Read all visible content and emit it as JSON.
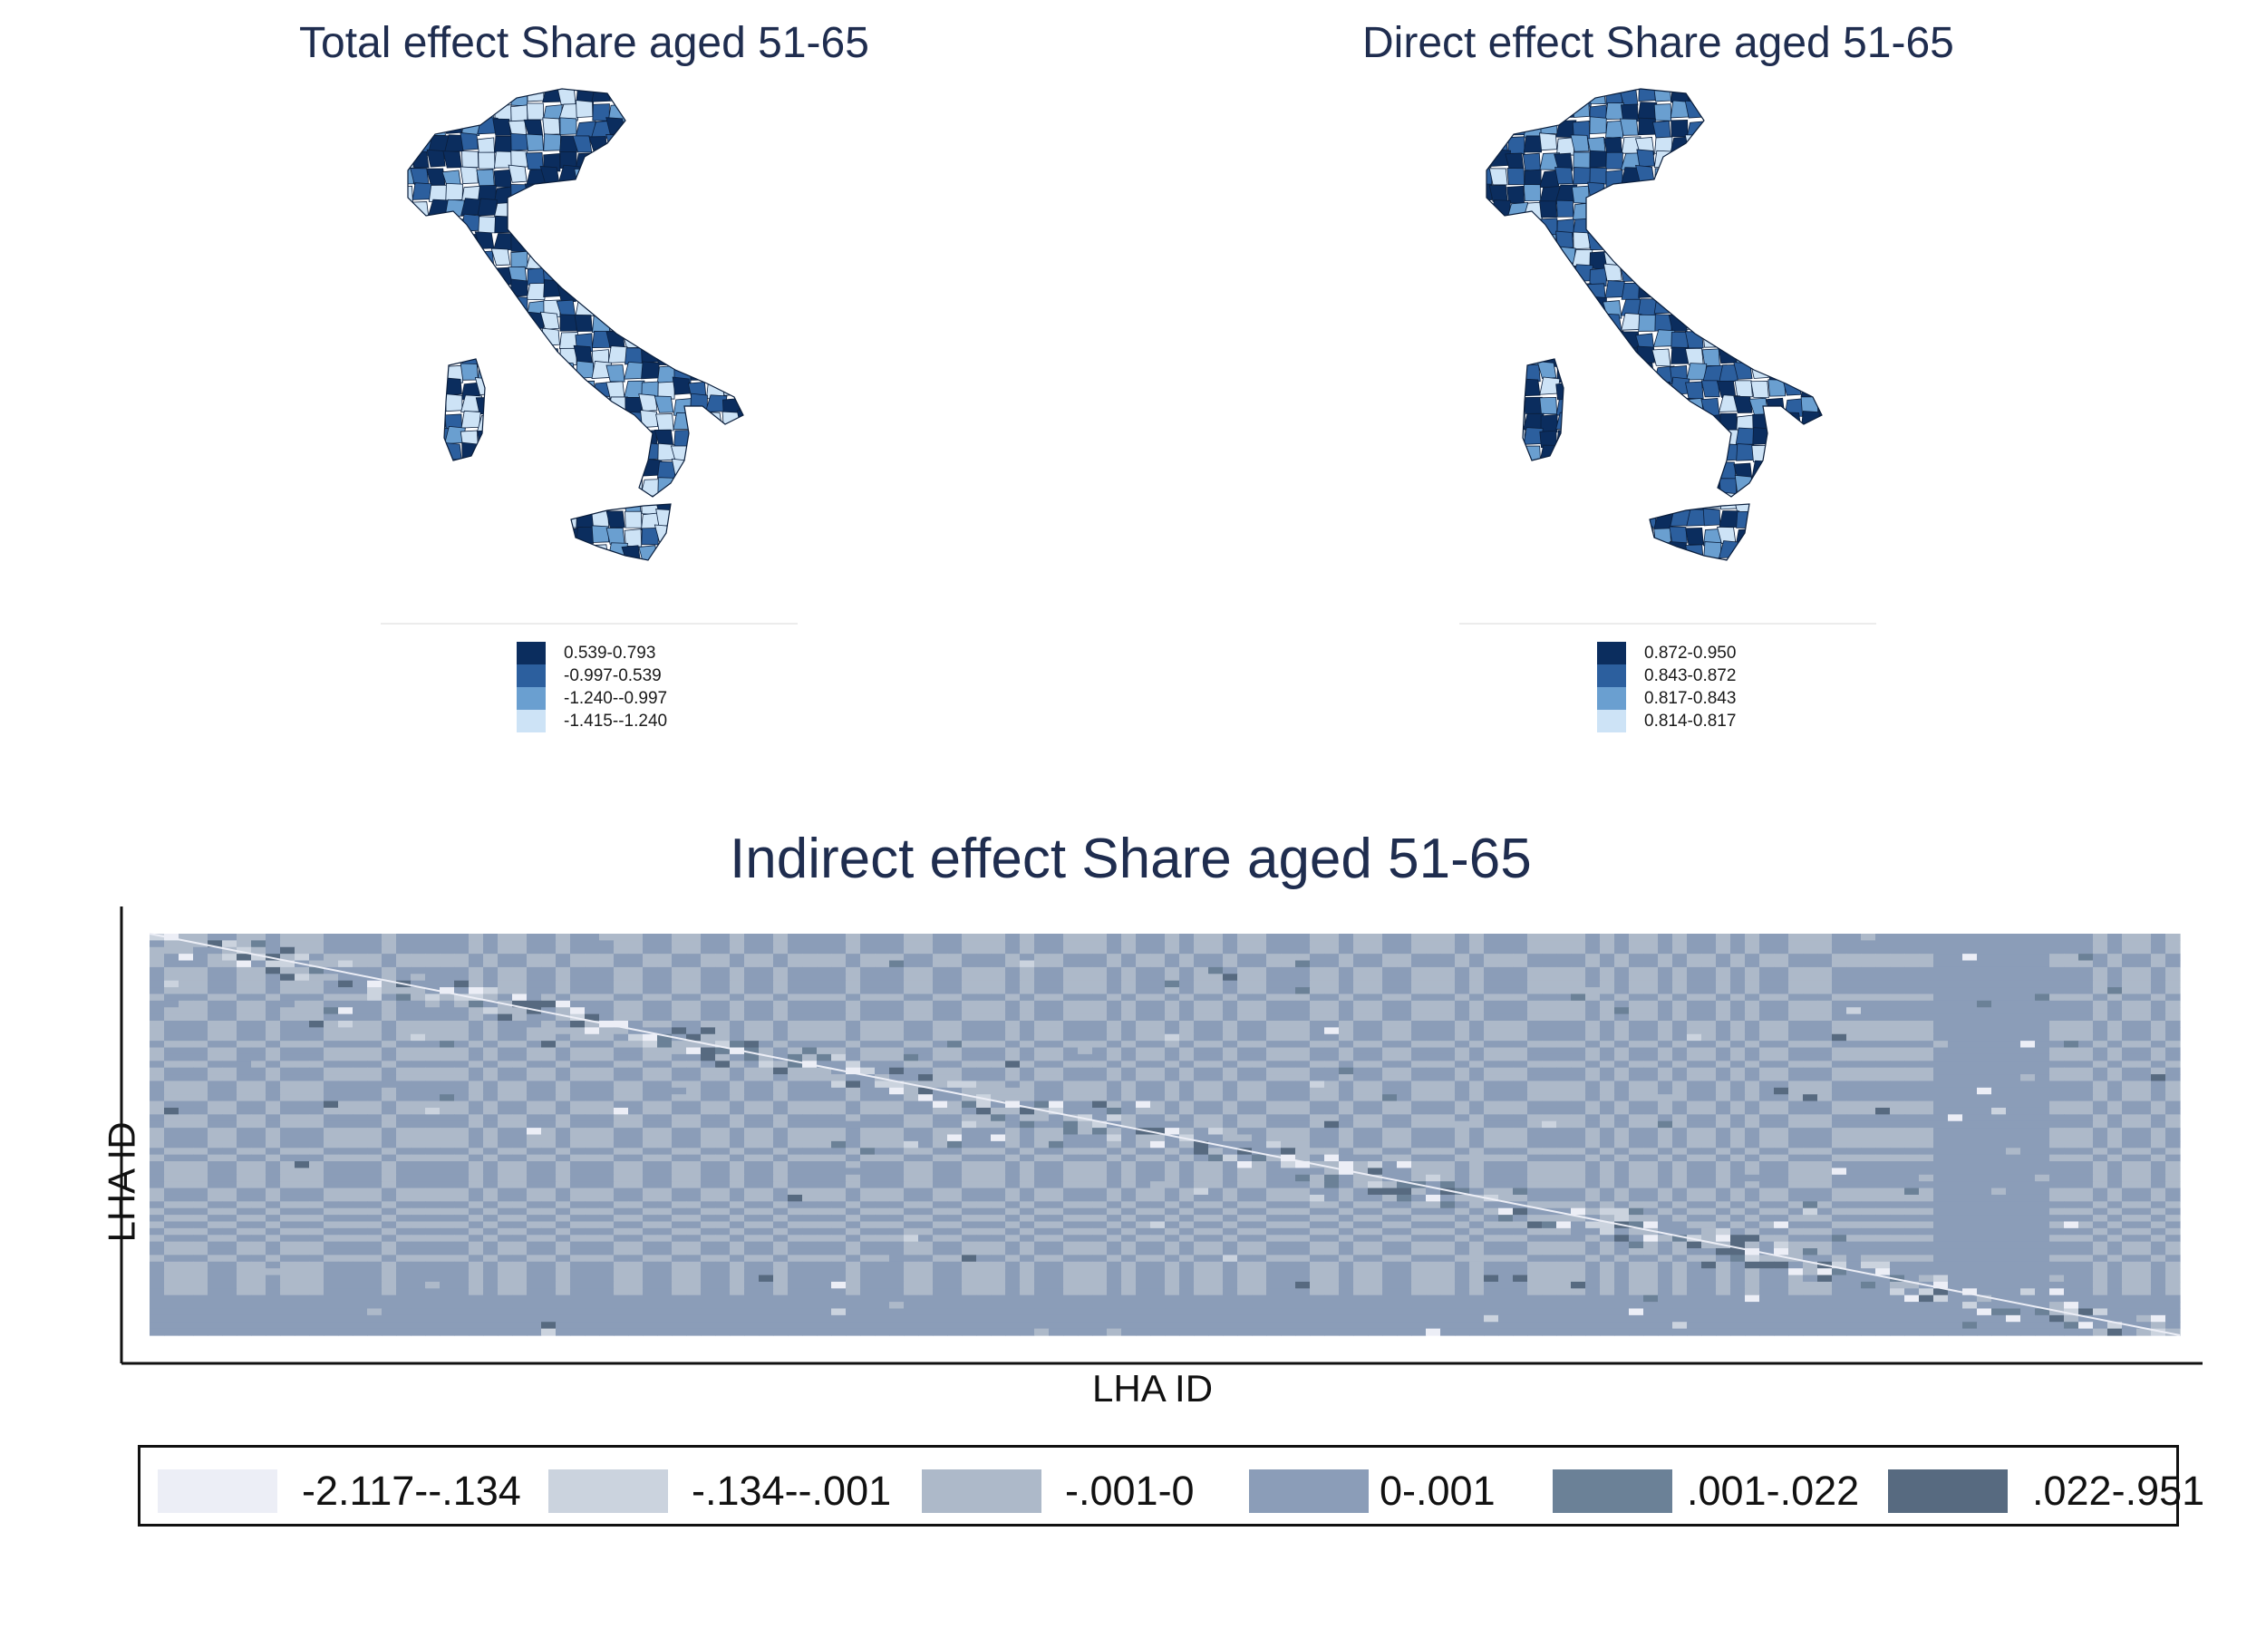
{
  "chart_data": [
    {
      "type": "map",
      "title": "Total effect Share aged 51-65",
      "legend": [
        {
          "label": "0.539-0.793",
          "color": "#0b2d5e"
        },
        {
          "label": "-0.997-0.539",
          "color": "#2c5f9e"
        },
        {
          "label": "-1.240--0.997",
          "color": "#6a9fd0"
        },
        {
          "label": "-1.415--1.240",
          "color": "#cde3f6"
        }
      ]
    },
    {
      "type": "map",
      "title": "Direct effect Share aged 51-65",
      "legend": [
        {
          "label": "0.872-0.950",
          "color": "#0b2d5e"
        },
        {
          "label": "0.843-0.872",
          "color": "#2c5f9e"
        },
        {
          "label": "0.817-0.843",
          "color": "#6a9fd0"
        },
        {
          "label": "0.814-0.817",
          "color": "#cde3f6"
        }
      ]
    },
    {
      "type": "heatmap",
      "title": "Indirect effect Share aged 51-65",
      "xlabel": "LHA ID",
      "ylabel": "LHA ID",
      "legend": [
        {
          "label": "-2.117--.134",
          "color": "#eceef6"
        },
        {
          "label": "-.134--.001",
          "color": "#cbd3de"
        },
        {
          "label": "-.001-0",
          "color": "#adb9c9"
        },
        {
          "label": "0-.001",
          "color": "#8b9db8"
        },
        {
          "label": ".001-.022",
          "color": "#6b8197"
        },
        {
          "label": ".022-.951",
          "color": "#576a80"
        }
      ]
    }
  ]
}
